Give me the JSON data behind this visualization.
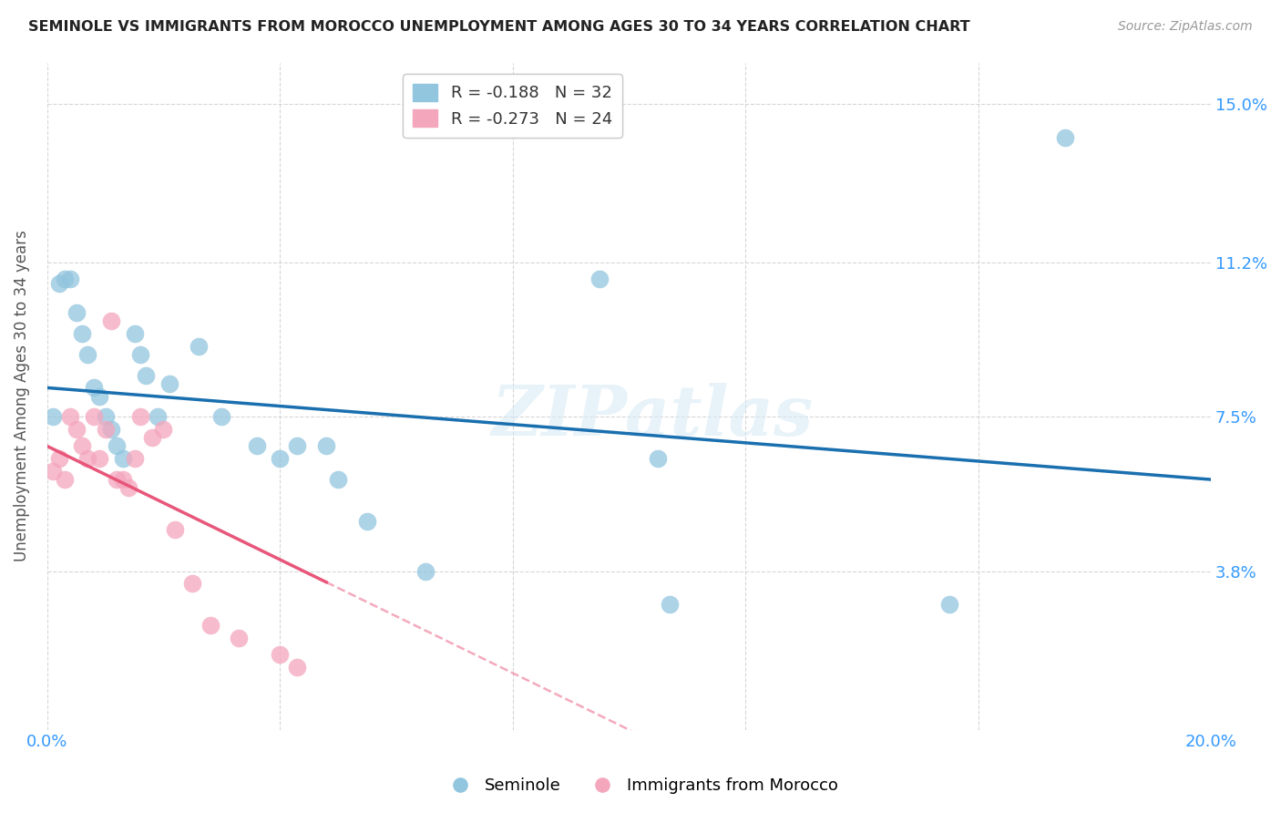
{
  "title": "SEMINOLE VS IMMIGRANTS FROM MOROCCO UNEMPLOYMENT AMONG AGES 30 TO 34 YEARS CORRELATION CHART",
  "source": "Source: ZipAtlas.com",
  "ylabel": "Unemployment Among Ages 30 to 34 years",
  "xlim": [
    0.0,
    0.2
  ],
  "ylim": [
    0.0,
    0.16
  ],
  "xtick_positions": [
    0.0,
    0.04,
    0.08,
    0.12,
    0.16,
    0.2
  ],
  "xticklabels": [
    "0.0%",
    "",
    "",
    "",
    "",
    "20.0%"
  ],
  "ytick_positions": [
    0.0,
    0.038,
    0.075,
    0.112,
    0.15
  ],
  "yticklabels": [
    "",
    "3.8%",
    "7.5%",
    "11.2%",
    "15.0%"
  ],
  "watermark": "ZIPatlas",
  "legend_r1": "R = -0.188",
  "legend_n1": "N = 32",
  "legend_r2": "R = -0.273",
  "legend_n2": "N = 24",
  "blue_color": "#92c5de",
  "pink_color": "#f4a6bd",
  "trend_blue": "#1a6faf",
  "trend_pink": "#e8567a",
  "background_color": "#ffffff",
  "seminole_x": [
    0.001,
    0.002,
    0.003,
    0.004,
    0.005,
    0.006,
    0.007,
    0.008,
    0.009,
    0.01,
    0.011,
    0.012,
    0.013,
    0.015,
    0.016,
    0.017,
    0.019,
    0.021,
    0.026,
    0.03,
    0.036,
    0.04,
    0.043,
    0.048,
    0.05,
    0.055,
    0.065,
    0.095,
    0.105,
    0.107,
    0.155,
    0.175
  ],
  "seminole_y": [
    0.075,
    0.107,
    0.108,
    0.108,
    0.1,
    0.095,
    0.09,
    0.082,
    0.08,
    0.075,
    0.072,
    0.068,
    0.065,
    0.095,
    0.09,
    0.085,
    0.075,
    0.083,
    0.092,
    0.075,
    0.068,
    0.065,
    0.068,
    0.068,
    0.06,
    0.05,
    0.038,
    0.108,
    0.065,
    0.03,
    0.03,
    0.142
  ],
  "morocco_x": [
    0.001,
    0.002,
    0.003,
    0.004,
    0.005,
    0.006,
    0.007,
    0.008,
    0.009,
    0.01,
    0.011,
    0.012,
    0.013,
    0.014,
    0.015,
    0.016,
    0.018,
    0.02,
    0.022,
    0.025,
    0.028,
    0.033,
    0.04,
    0.043
  ],
  "morocco_y": [
    0.062,
    0.065,
    0.06,
    0.075,
    0.072,
    0.068,
    0.065,
    0.075,
    0.065,
    0.072,
    0.098,
    0.06,
    0.06,
    0.058,
    0.065,
    0.075,
    0.07,
    0.072,
    0.048,
    0.035,
    0.025,
    0.022,
    0.018,
    0.015
  ]
}
